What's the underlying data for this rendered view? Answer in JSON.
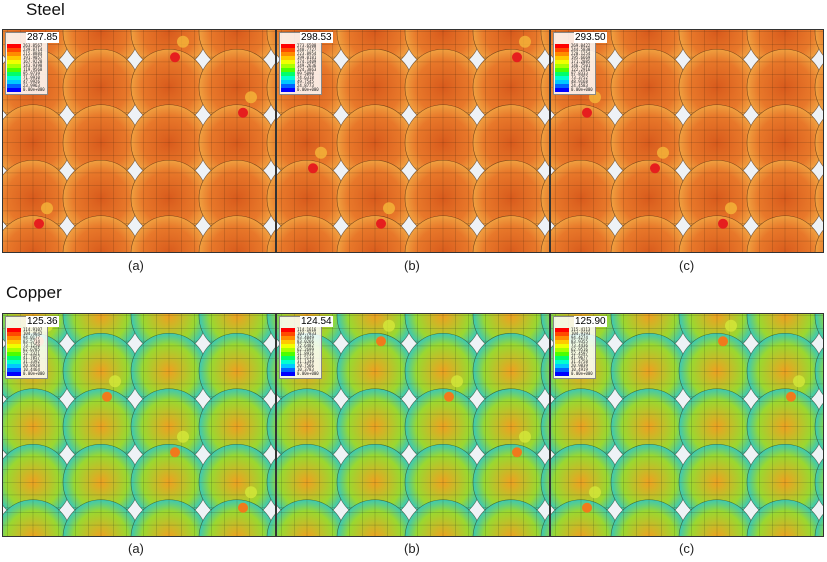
{
  "sections": [
    {
      "title": "Steel",
      "panels": [
        {
          "caption": "(a)",
          "max": "287.85",
          "theme": "steel",
          "ticks": [
            "263.8567",
            "239.8714",
            "215.8884",
            "191.9057",
            "167.9228",
            "143.9398",
            "119.9568",
            "95.9739",
            "71.9910",
            "47.9926",
            "23.9963",
            "0.00e+000"
          ]
        },
        {
          "caption": "(b)",
          "max": "298.53",
          "theme": "steel",
          "ticks": [
            "273.6500",
            "248.7727",
            "223.8954",
            "199.0181",
            "174.1409",
            "149.2636",
            "124.3863",
            "99.5090",
            "74.6318",
            "49.7545",
            "24.8773",
            "0.00e+000"
          ]
        },
        {
          "caption": "(c)",
          "max": "293.50",
          "theme": "steel",
          "ticks": [
            "269.0422",
            "244.5838",
            "220.1254",
            "195.6669",
            "171.2085",
            "146.7501",
            "122.2916",
            "97.8333",
            "73.3752",
            "48.9168",
            "24.4583",
            "0.00e+000"
          ]
        }
      ]
    },
    {
      "title": "Copper",
      "panels": [
        {
          "caption": "(a)",
          "max": "125.36",
          "theme": "copper",
          "ticks": [
            "114.9107",
            "104.4642",
            "94.0177",
            "83.5714",
            "73.1250",
            "62.6785",
            "52.2321",
            "41.7857",
            "31.3392",
            "20.8928",
            "10.4464",
            "0.00e+000"
          ]
        },
        {
          "caption": "(b)",
          "max": "124.54",
          "theme": "copper",
          "ticks": [
            "114.1616",
            "103.7833",
            "93.4049",
            "83.0266",
            "72.6482",
            "62.2699",
            "51.8916",
            "41.5133",
            "31.1349",
            "20.7566",
            "10.3783",
            "0.00e+000"
          ]
        },
        {
          "caption": "(c)",
          "max": "125.90",
          "theme": "copper",
          "ticks": [
            "115.4113",
            "104.9193",
            "94.4274",
            "83.9355",
            "73.4436",
            "62.9516",
            "52.4597",
            "41.9677",
            "31.4758",
            "20.9839",
            "10.4919",
            "0.00e+000"
          ]
        }
      ]
    }
  ],
  "legend_colors": [
    "#ff0000",
    "#ff4a00",
    "#ff8c00",
    "#ffc800",
    "#f0ff00",
    "#a8ff00",
    "#4cff00",
    "#00ff6a",
    "#00ffd0",
    "#00c8ff",
    "#0064ff",
    "#0000ff"
  ],
  "themes": {
    "steel": {
      "bg": "#eef2f6",
      "disk": "#e8782a",
      "core": "#d85a1c",
      "edge": "#f0a040",
      "mesh": "#4a2a10",
      "hot": "#e61e1e",
      "warm": "#f5b63a"
    },
    "copper": {
      "bg": "#eef2f6",
      "disk": "#9ad830",
      "core": "#f0a020",
      "edge": "#3cc8b4",
      "mesh": "#28401c",
      "hot": "#f07a1c",
      "warm": "#d4e83a"
    }
  }
}
